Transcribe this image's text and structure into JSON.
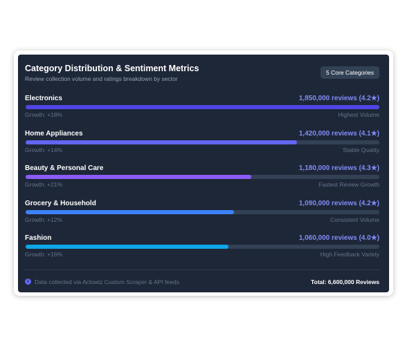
{
  "header": {
    "title": "Category Distribution & Sentiment Metrics",
    "subtitle": "Review collection volume and ratings breakdown by sector",
    "badge": "5 Core Categories"
  },
  "categories": [
    {
      "name": "Electronics",
      "reviews": 1850000,
      "value_label": "1,850,000 reviews (4.2★)",
      "growth": "Growth: +18%",
      "note": "Highest Volume",
      "color": "#4f46e5"
    },
    {
      "name": "Home Appliances",
      "reviews": 1420000,
      "value_label": "1,420,000 reviews (4.1★)",
      "growth": "Growth: +14%",
      "note": "Stable Quality",
      "color": "#6366f1"
    },
    {
      "name": "Beauty & Personal Care",
      "reviews": 1180000,
      "value_label": "1,180,000 reviews (4.3★)",
      "growth": "Growth: +21%",
      "note": "Fastest Review Growth",
      "color": "#8b5cf6"
    },
    {
      "name": "Grocery & Household",
      "reviews": 1090000,
      "value_label": "1,090,000 reviews (4.2★)",
      "growth": "Growth: +12%",
      "note": "Consistent Volume",
      "color": "#3b82f6"
    },
    {
      "name": "Fashion",
      "reviews": 1060000,
      "value_label": "1,060,000 reviews (4.0★)",
      "growth": "Growth: +16%",
      "note": "High Feedback Variety",
      "color": "#0ea5e9"
    }
  ],
  "footer": {
    "note": "Data collected via Actowiz Custom Scraper & API feeds",
    "total": "Total: 6,600,000 Reviews"
  }
}
